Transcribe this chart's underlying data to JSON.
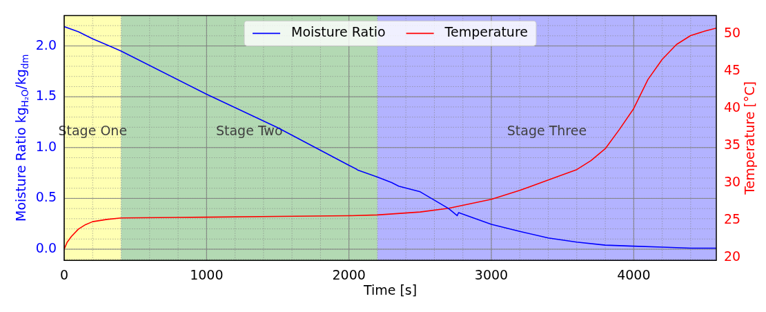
{
  "chart_data": {
    "type": "line",
    "xlabel": "Time [s]",
    "ylabel": "Moisture Ratio kg$_{H₂O}$/kg$_{dm}$",
    "y2label": "Temperature [°C]",
    "xlim": [
      0,
      4580
    ],
    "xticks": [
      0,
      1000,
      2000,
      3000,
      4000
    ],
    "ylim": [
      -0.11,
      2.3
    ],
    "yticks": [
      {
        "value": 0,
        "label": "0.0"
      },
      0.5,
      {
        "value": 1,
        "label": "1.0"
      },
      1.5,
      {
        "value": 2,
        "label": "2.0"
      }
    ],
    "y2lim": [
      19.6,
      52.5
    ],
    "y2ticks": [
      20,
      25,
      30,
      35,
      40,
      45,
      50
    ],
    "grid": true,
    "legend": "top",
    "line_style": "solid",
    "marker": "none",
    "bands": [
      {
        "axis": "x",
        "from": 0,
        "to": 400,
        "color": "#ffffb3",
        "label": "Stage One"
      },
      {
        "axis": "x",
        "from": 400,
        "to": 2200,
        "color": "#b3d9b3",
        "label": "Stage Two"
      },
      {
        "axis": "x",
        "from": 2200,
        "to": 4580,
        "color": "#b3b3ff",
        "label": "Stage Three"
      }
    ],
    "series": [
      {
        "name": "Moisture Ratio",
        "color": "#0000ff",
        "x": [
          0,
          100,
          200,
          300,
          400,
          1000,
          1500,
          2000,
          2050,
          2060,
          2200,
          2300,
          2350,
          2500,
          2700,
          2760,
          2770,
          3000,
          3200,
          3400,
          3600,
          3800,
          4000,
          4200,
          4400,
          4580
        ],
        "values": [
          2.19,
          2.14,
          2.07,
          2.01,
          1.95,
          1.525,
          1.195,
          0.825,
          0.79,
          0.78,
          0.71,
          0.655,
          0.62,
          0.565,
          0.4,
          0.33,
          0.36,
          0.245,
          0.175,
          0.11,
          0.07,
          0.04,
          0.03,
          0.02,
          0.01,
          0.01
        ]
      },
      {
        "name": "Temperature",
        "color": "#ff0000",
        "axis": "y2",
        "x": [
          0,
          20,
          50,
          100,
          150,
          200,
          300,
          400,
          1000,
          1500,
          2000,
          2200,
          2500,
          2700,
          3000,
          3200,
          3400,
          3600,
          3700,
          3800,
          3900,
          4000,
          4100,
          4200,
          4300,
          4400,
          4500,
          4580
        ],
        "values": [
          21.1,
          22.0,
          22.8,
          23.8,
          24.4,
          24.8,
          25.1,
          25.3,
          25.4,
          25.5,
          25.6,
          25.7,
          26.1,
          26.6,
          27.8,
          29.0,
          30.4,
          31.8,
          33.0,
          34.6,
          37.2,
          40.0,
          43.9,
          46.6,
          48.6,
          49.8,
          50.4,
          50.8
        ]
      }
    ]
  }
}
